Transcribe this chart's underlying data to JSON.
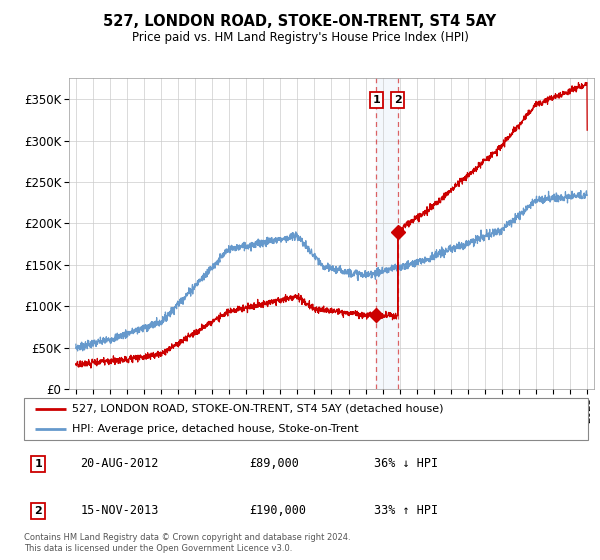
{
  "title": "527, LONDON ROAD, STOKE-ON-TRENT, ST4 5AY",
  "subtitle": "Price paid vs. HM Land Registry's House Price Index (HPI)",
  "legend_line1": "527, LONDON ROAD, STOKE-ON-TRENT, ST4 5AY (detached house)",
  "legend_line2": "HPI: Average price, detached house, Stoke-on-Trent",
  "sale1_date": "20-AUG-2012",
  "sale1_price": "£89,000",
  "sale1_hpi": "36% ↓ HPI",
  "sale1_year": 2012.62,
  "sale1_value": 89000,
  "sale2_date": "15-NOV-2013",
  "sale2_price": "£190,000",
  "sale2_hpi": "33% ↑ HPI",
  "sale2_year": 2013.88,
  "sale2_value": 190000,
  "footnote": "Contains HM Land Registry data © Crown copyright and database right 2024.\nThis data is licensed under the Open Government Licence v3.0.",
  "red_color": "#cc0000",
  "blue_color": "#6699cc",
  "background_color": "#ffffff",
  "grid_color": "#cccccc",
  "ylim": [
    0,
    375000
  ],
  "yticks": [
    0,
    50000,
    100000,
    150000,
    200000,
    250000,
    300000,
    350000
  ],
  "xlim_start": 1994.6,
  "xlim_end": 2025.4
}
